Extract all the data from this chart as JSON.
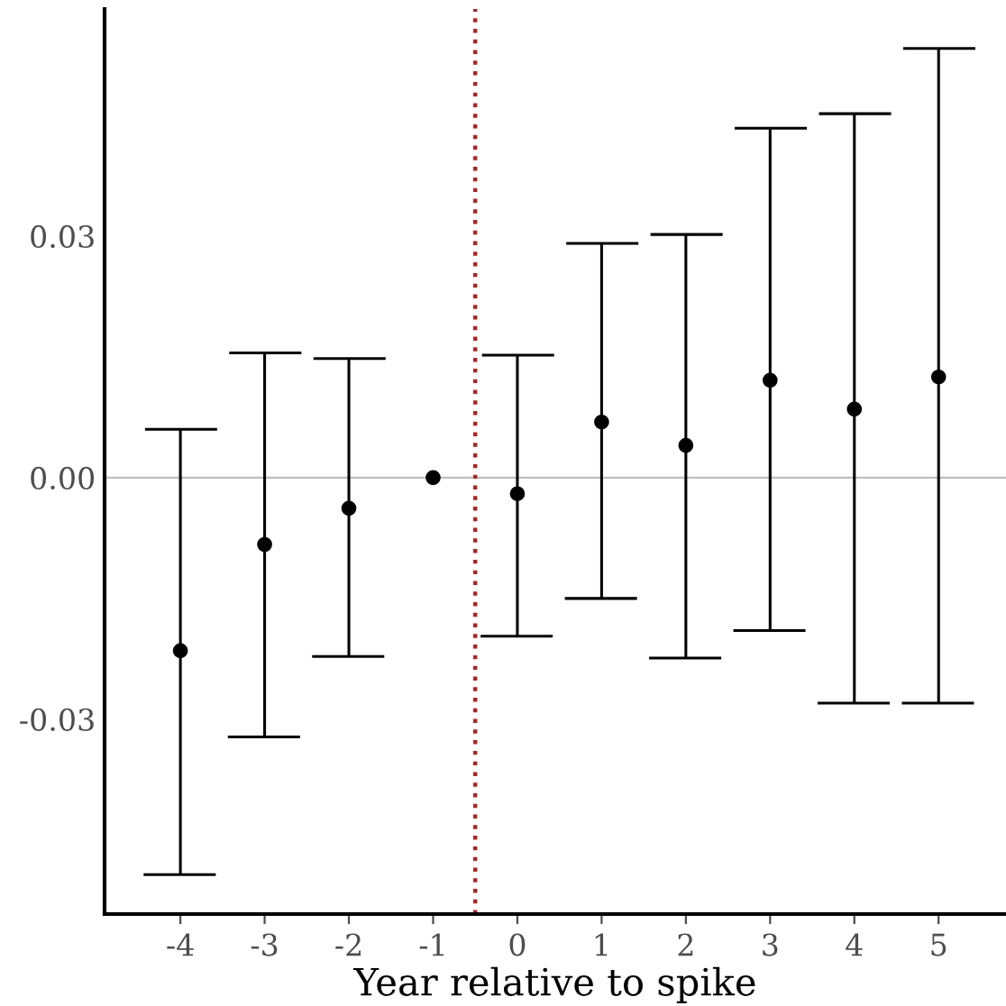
{
  "chart_data": {
    "type": "scatter",
    "xlabel": "Year relative to spike",
    "x": [
      -4,
      -3,
      -2,
      -1,
      0,
      1,
      2,
      3,
      4,
      5
    ],
    "series": [
      {
        "color": "#000000",
        "values": [
          -0.0215,
          -0.0083,
          -0.0038,
          0.0,
          -0.002,
          0.0069,
          0.004,
          0.0121,
          0.0085,
          0.0125
        ],
        "errors": [
          [
            -0.0493,
            0.006
          ],
          [
            -0.0322,
            0.0155
          ],
          [
            -0.0222,
            0.0148
          ],
          null,
          [
            -0.0197,
            0.0152
          ],
          [
            -0.015,
            0.0291
          ],
          [
            -0.0224,
            0.0302
          ],
          [
            -0.019,
            0.0434
          ],
          [
            -0.028,
            0.0452
          ],
          [
            -0.028,
            0.0533
          ]
        ]
      }
    ],
    "xlim": [
      -4.9,
      5.8
    ],
    "xticks": [
      -4,
      -3,
      -2,
      -1,
      0,
      1,
      2,
      3,
      4,
      5
    ],
    "ylim": [
      -0.0542,
      0.0582
    ],
    "yticks": [
      {
        "value": -0.03,
        "label": "-0.03"
      },
      {
        "value": 0.0,
        "label": "0.00"
      },
      {
        "value": 0.03,
        "label": "0.03"
      }
    ],
    "ref_lines": [
      {
        "axis": "y",
        "value": 0.0,
        "color": "#bebebe",
        "line_style": "solid"
      },
      {
        "axis": "x",
        "value": -0.5,
        "color": "#b22222",
        "line_style": "dotted"
      }
    ],
    "marker": "circle",
    "grid": false,
    "legend": false
  }
}
